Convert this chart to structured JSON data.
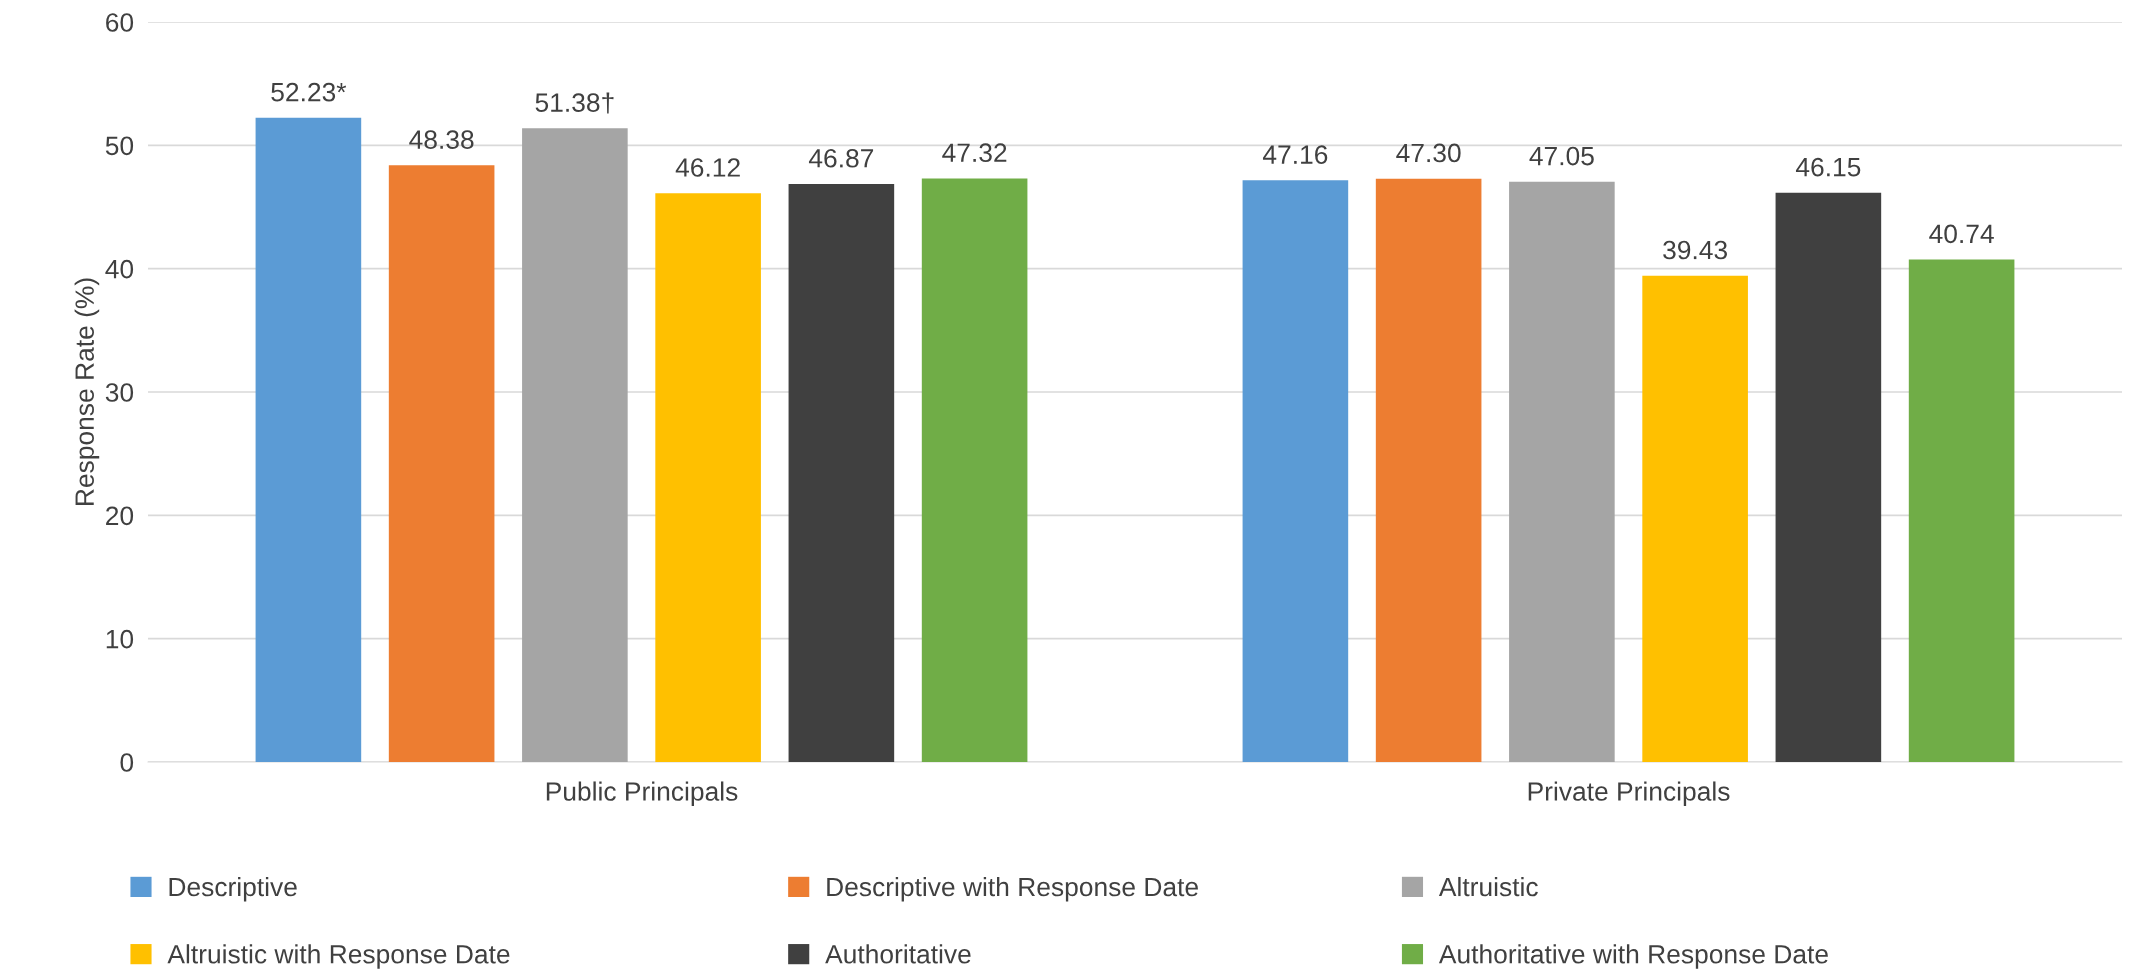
{
  "chart_data": {
    "type": "bar",
    "ylabel": "Response Rate (%)",
    "categories": [
      "Public Principals",
      "Private Principals"
    ],
    "series": [
      {
        "name": "Descriptive",
        "color": "#5b9bd5",
        "values": [
          52.23,
          47.16
        ],
        "value_labels": [
          "52.23*",
          "47.16"
        ]
      },
      {
        "name": "Descriptive with Response Date",
        "color": "#ed7d31",
        "values": [
          48.38,
          47.3
        ],
        "value_labels": [
          "48.38",
          "47.30"
        ]
      },
      {
        "name": "Altruistic",
        "color": "#a5a5a5",
        "values": [
          51.38,
          47.05
        ],
        "value_labels": [
          "51.38†",
          "47.05"
        ]
      },
      {
        "name": "Altruistic with Response Date",
        "color": "#ffc000",
        "values": [
          46.12,
          39.43
        ],
        "value_labels": [
          "46.12",
          "39.43"
        ]
      },
      {
        "name": "Authoritative",
        "color": "#404040",
        "values": [
          46.87,
          46.15
        ],
        "value_labels": [
          "46.87",
          "46.15"
        ]
      },
      {
        "name": "Authoritative with Response Date",
        "color": "#70ad47",
        "values": [
          47.32,
          40.74
        ],
        "value_labels": [
          "47.32",
          "40.74"
        ]
      }
    ],
    "ylim": [
      0,
      60
    ],
    "yticks": [
      0,
      10,
      20,
      30,
      40,
      50,
      60
    ],
    "grid": "y",
    "legend": "bottom"
  }
}
